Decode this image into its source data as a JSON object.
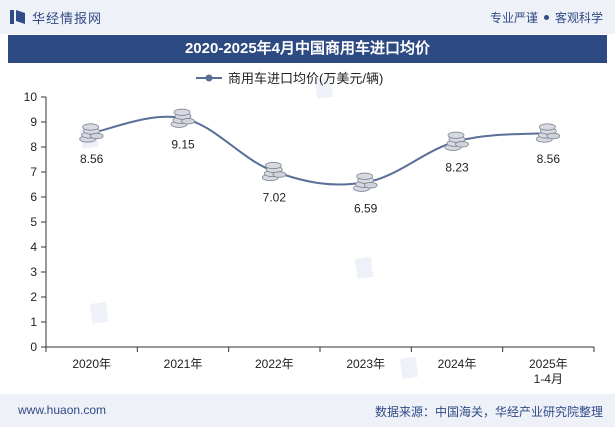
{
  "brand": {
    "name": "华经情报网"
  },
  "slogan": {
    "part1": "专业严谨",
    "part2": "客观科学"
  },
  "footer": {
    "url": "www.huaon.com",
    "source": "数据来源：中国海关，华经产业研究院整理"
  },
  "chart_data": {
    "type": "line",
    "title": "2020-2025年4月中国商用车进口均价",
    "categories": [
      "2020年",
      "2021年",
      "2022年",
      "2023年",
      "2024年",
      "2025年\n1-4月"
    ],
    "series": [
      {
        "name": "商用车进口均价(万美元/辆)",
        "values": [
          8.56,
          9.15,
          7.02,
          6.59,
          8.23,
          8.56
        ]
      }
    ],
    "data_labels": [
      "8.56",
      "9.15",
      "7.02",
      "6.59",
      "8.23",
      "8.56"
    ],
    "y_ticks": [
      0,
      1,
      2,
      3,
      4,
      5,
      6,
      7,
      8,
      9,
      10
    ],
    "ylim": [
      0,
      10
    ],
    "legend_position": "top-center",
    "smooth": true,
    "colors": {
      "line": "#5a6f98",
      "marker": "#c9ccd3",
      "axis": "#333333"
    }
  }
}
